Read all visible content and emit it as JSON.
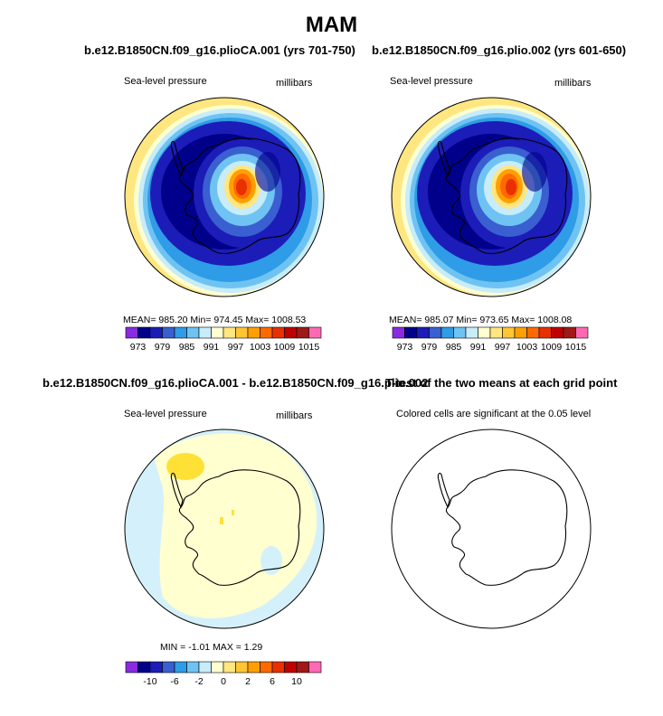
{
  "main_title": "MAM",
  "panels": {
    "a": {
      "title": "b.e12.B1850CN.f09_g16.plioCA.001 (yrs 701-750)",
      "left_label": "Sea-level pressure",
      "right_label": "millibars",
      "stats": "MEAN= 985.20   Min= 974.45   Max= 1008.53"
    },
    "b": {
      "title": "b.e12.B1850CN.f09_g16.plio.002 (yrs 601-650)",
      "left_label": "Sea-level pressure",
      "right_label": "millibars",
      "stats": "MEAN= 985.07   Min= 973.65   Max= 1008.08"
    },
    "c": {
      "title_a": "b.e12.B1850CN.f09_g16.plioCA.001 - b.e12.B1850CN.f09_g16.plio.002",
      "left_label": "Sea-level pressure",
      "right_label": "millibars",
      "stats": "MIN =   -1.01  MAX =    1.29"
    },
    "d": {
      "title": "T-test of the two means at each grid point",
      "left_label": "Colored cells are significant at the 0.05 level"
    }
  },
  "chart_data": [
    {
      "type": "heatmap",
      "projection": "south-polar-stereographic",
      "title": "b.e12.B1850CN.f09_g16.plioCA.001 (yrs 701-750)",
      "variable": "Sea-level pressure",
      "units": "millibars",
      "mean": 985.2,
      "min": 974.45,
      "max": 1008.53,
      "colorbar_labels": [
        "973",
        "979",
        "985",
        "991",
        "997",
        "1003",
        "1009",
        "1015"
      ],
      "colorbar_colors": [
        "#8A2BE2",
        "#00008B",
        "#1C1CB8",
        "#3A5FD0",
        "#2E9CE6",
        "#6FC3F2",
        "#C7ECFA",
        "#FFFFD0",
        "#FFE680",
        "#FFC533",
        "#FFA000",
        "#FF6A00",
        "#E83000",
        "#C00000",
        "#A01818",
        "#FF69B4"
      ]
    },
    {
      "type": "heatmap",
      "projection": "south-polar-stereographic",
      "title": "b.e12.B1850CN.f09_g16.plio.002 (yrs 601-650)",
      "variable": "Sea-level pressure",
      "units": "millibars",
      "mean": 985.07,
      "min": 973.65,
      "max": 1008.08,
      "colorbar_labels": [
        "973",
        "979",
        "985",
        "991",
        "997",
        "1003",
        "1009",
        "1015"
      ]
    },
    {
      "type": "heatmap",
      "projection": "south-polar-stereographic",
      "title": "b.e12.B1850CN.f09_g16.plioCA.001 - b.e12.B1850CN.f09_g16.plio.002",
      "variable": "Sea-level pressure",
      "units": "millibars",
      "min": -1.01,
      "max": 1.29,
      "colorbar_labels": [
        "-10",
        "-6",
        "-2",
        "0",
        "2",
        "6",
        "10"
      ]
    },
    {
      "type": "heatmap",
      "projection": "south-polar-stereographic",
      "title": "T-test of the two means at each grid point",
      "note": "Colored cells are significant at the 0.05 level"
    }
  ]
}
